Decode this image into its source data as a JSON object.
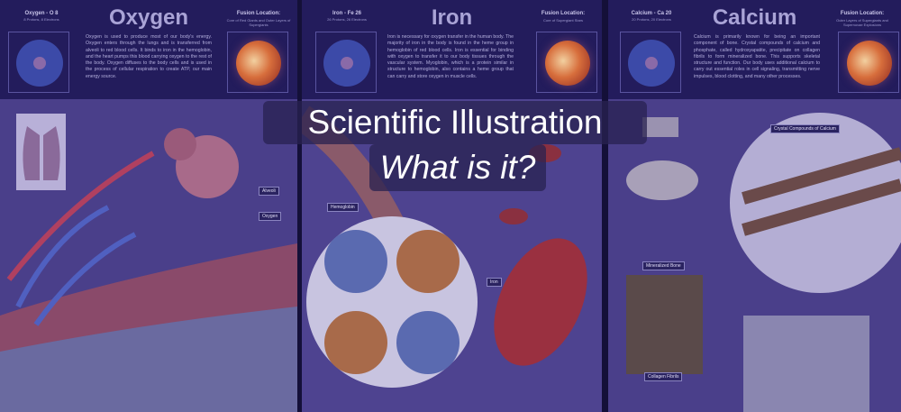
{
  "title": {
    "line1": "Scientific Illustration",
    "line2": "What is it?"
  },
  "panels": [
    {
      "name": "Oxygen",
      "element": "Oxygen - O 8",
      "particles": "8 Protons, 8 Electrons",
      "description": "Oxygen is used to produce most of our body's energy. Oxygen enters through the lungs and is transferred from alveoli to red blood cells. It binds to iron in the hemoglobin, and the heart pumps this blood carrying oxygen to the rest of the body. Oxygen diffuses to the body cells and is used in the process of cellular respiration to create ATP, our main energy source.",
      "fusion_title": "Fusion Location:",
      "fusion": "Core of Red Giants and Outer Layers of Supergiants",
      "labels": [
        "Alveoli",
        "Oxygen"
      ]
    },
    {
      "name": "Iron",
      "element": "Iron - Fe 26",
      "particles": "26 Protons, 26 Electrons",
      "description": "Iron is necessary for oxygen transfer in the human body. The majority of iron in the body is found in the heme group in hemoglobin of red blood cells. Iron is essential for binding with oxygen to transfer it to our body tissues through the vascular system. Myoglobin, which is a protein similar in structure to hemoglobin, also contains a heme group that can carry and store oxygen in muscle cells.",
      "fusion_title": "Fusion Location:",
      "fusion": "Core of Supergiant Stars",
      "labels": [
        "Hemoglobin",
        "Iron"
      ]
    },
    {
      "name": "Calcium",
      "element": "Calcium - Ca 20",
      "particles": "20 Protons, 20 Electrons",
      "description": "Calcium is primarily known for being an important component of bone. Crystal compounds of calcium and phosphate, called hydroxyapatite, precipitate on collagen fibrils to form mineralized bone. This supports skeletal structure and function. Our body uses additional calcium to carry out essential roles in cell signaling, transmitting nerve impulses, blood clotting, and many other processes.",
      "fusion_title": "Fusion Location:",
      "fusion": "Outer Layers of Supergiants and Supernovae Explosions",
      "labels": [
        "Crystal Compounds of Calcium",
        "Mineralized Bone",
        "Collagen Fibrils"
      ]
    }
  ],
  "colors": {
    "header": "#231c5c",
    "overlay": "#4a3f8a",
    "title_box": "#282250"
  }
}
